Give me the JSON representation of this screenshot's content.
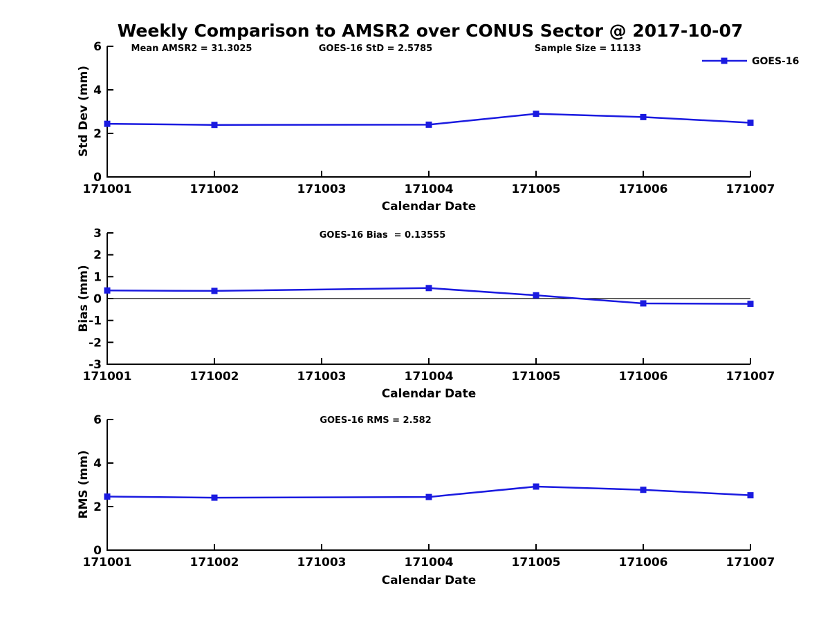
{
  "figure": {
    "title": "Weekly Comparison to AMSR2 over CONUS Sector @ 2017-10-07",
    "background_color": "#ffffff",
    "series_color": "#1a1ae0",
    "axis_color": "#000000",
    "legend": {
      "label": "GOES-16"
    }
  },
  "chart_data": [
    {
      "type": "line",
      "title": "Weekly Comparison to AMSR2 over CONUS Sector @ 2017-10-07",
      "ylabel": "Std Dev (mm)",
      "xlabel": "Calendar Date",
      "annotations": [
        "Mean AMSR2 = 31.3025",
        "GOES-16 StD = 2.5785",
        "Sample Size = 11133"
      ],
      "x_ticks": [
        "171001",
        "171002",
        "171003",
        "171004",
        "171005",
        "171006",
        "171007"
      ],
      "y_ticks": [
        0,
        2,
        4,
        6
      ],
      "xlim": [
        171001,
        171007
      ],
      "ylim": [
        0,
        6
      ],
      "grid": false,
      "legend_position": "top-right",
      "series": [
        {
          "name": "GOES-16",
          "x": [
            171001,
            171002,
            171004,
            171005,
            171006,
            171007
          ],
          "y": [
            2.44,
            2.39,
            2.4,
            2.9,
            2.75,
            2.49
          ]
        }
      ]
    },
    {
      "type": "line",
      "ylabel": "Bias (mm)",
      "xlabel": "Calendar Date",
      "annotations": [
        "GOES-16 Bias  = 0.13555"
      ],
      "x_ticks": [
        "171001",
        "171002",
        "171003",
        "171004",
        "171005",
        "171006",
        "171007"
      ],
      "y_ticks": [
        -3,
        -2,
        -1,
        0,
        1,
        2,
        3
      ],
      "xlim": [
        171001,
        171007
      ],
      "ylim": [
        -3,
        3
      ],
      "grid": false,
      "zero_line": true,
      "series": [
        {
          "name": "GOES-16",
          "x": [
            171001,
            171002,
            171004,
            171005,
            171006,
            171007
          ],
          "y": [
            0.37,
            0.35,
            0.48,
            0.15,
            -0.22,
            -0.24
          ]
        }
      ]
    },
    {
      "type": "line",
      "ylabel": "RMS (mm)",
      "xlabel": "Calendar Date",
      "annotations": [
        "GOES-16 RMS = 2.582"
      ],
      "x_ticks": [
        "171001",
        "171002",
        "171003",
        "171004",
        "171005",
        "171006",
        "171007"
      ],
      "y_ticks": [
        0,
        2,
        4,
        6
      ],
      "xlim": [
        171001,
        171007
      ],
      "ylim": [
        0,
        6
      ],
      "grid": false,
      "series": [
        {
          "name": "GOES-16",
          "x": [
            171001,
            171002,
            171004,
            171005,
            171006,
            171007
          ],
          "y": [
            2.46,
            2.41,
            2.44,
            2.92,
            2.77,
            2.52
          ]
        }
      ]
    }
  ]
}
